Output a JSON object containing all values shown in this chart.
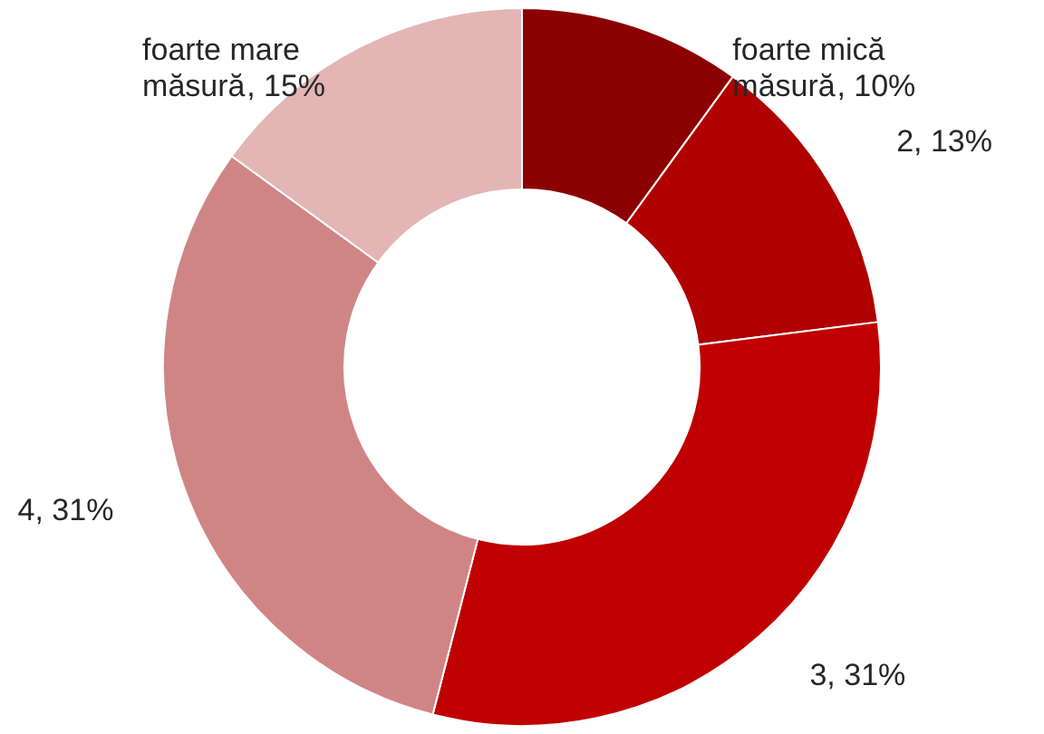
{
  "chart_data": {
    "type": "donut",
    "categories": [
      "foarte mică măsură",
      "2",
      "3",
      "4",
      "foarte mare măsură"
    ],
    "values": [
      10,
      13,
      31,
      31,
      15
    ],
    "colors": [
      "#8b0000",
      "#b00000",
      "#c00000",
      "#d08585",
      "#e3b5b5"
    ],
    "value_labels": [
      ", 10%",
      ", 13%",
      ", 31%",
      ", 31%",
      ", 15%"
    ]
  }
}
